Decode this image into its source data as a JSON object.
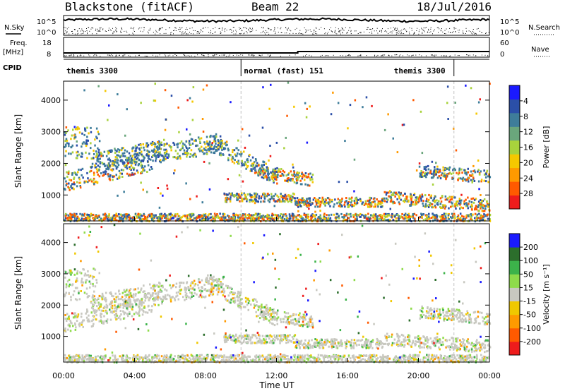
{
  "header": {
    "station": "Blackstone (fitACF)",
    "beam": "Beam 22",
    "date": "18/Jul/2016"
  },
  "summary": {
    "left_top_label": "N.Sky",
    "left_top_ticks": [
      "10^5",
      "10^0"
    ],
    "right_top_label": "N.Search",
    "right_top_ticks": [
      "10^5",
      "10^0"
    ],
    "left_freq_label": "Freq.",
    "left_freq_unit": "[MHz]",
    "left_freq_ticks": [
      "18",
      "8"
    ],
    "right_nave_label": "Nave",
    "right_nave_ticks": [
      "60",
      "0"
    ],
    "cpid_label": "CPID",
    "cpid_segments": [
      {
        "label": "themis 3300",
        "start_h": 0,
        "end_h": 10
      },
      {
        "label": "normal (fast) 151",
        "start_h": 10,
        "end_h": 22
      },
      {
        "label": "themis 3300",
        "start_h": 22,
        "end_h": 24
      }
    ]
  },
  "chart_data": [
    {
      "type": "heatmap",
      "panel": "power",
      "ylabel": "Slant Range [km]",
      "xlabel": "Time UT",
      "xlim": [
        0,
        24
      ],
      "ylim": [
        180,
        4600
      ],
      "yticks": [
        "1000",
        "2000",
        "3000",
        "4000"
      ],
      "xticks": [
        "00:00",
        "04:00",
        "08:00",
        "12:00",
        "16:00",
        "20:00",
        "00:00"
      ],
      "colorbar": {
        "label": "Power [dB]",
        "tick_labels": [
          "4",
          "8",
          "12",
          "16",
          "20",
          "24",
          "28"
        ],
        "colors": [
          "#1a1aff",
          "#2b4fa8",
          "#3e7d9a",
          "#6aa67c",
          "#a8d23c",
          "#f5c800",
          "#ff9a00",
          "#ff5a00",
          "#ee1c1c"
        ]
      }
    },
    {
      "type": "heatmap",
      "panel": "velocity",
      "ylabel": "Slant Range [km]",
      "xlabel": "Time UT",
      "xlim": [
        0,
        24
      ],
      "ylim": [
        180,
        4600
      ],
      "yticks": [
        "1000",
        "2000",
        "3000",
        "4000"
      ],
      "xticks": [
        "00:00",
        "04:00",
        "08:00",
        "12:00",
        "16:00",
        "20:00",
        "00:00"
      ],
      "colorbar": {
        "label": "Velocity [m s⁻¹]",
        "tick_labels": [
          "200",
          "100",
          "50",
          "15",
          "-15",
          "-50",
          "-100",
          "-200"
        ],
        "colors": [
          "#1a1aff",
          "#2c6e2c",
          "#3cb34a",
          "#8edb4a",
          "#c8c8c0",
          "#f0c800",
          "#ff9a00",
          "#ff5a00",
          "#ee1c1c"
        ]
      }
    }
  ]
}
